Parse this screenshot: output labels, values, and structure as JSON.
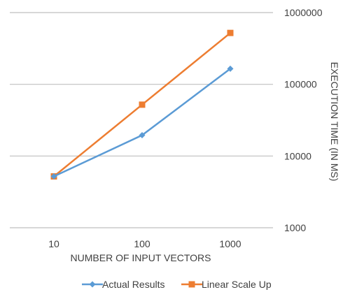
{
  "chart_data": {
    "type": "line",
    "x_scale": "log",
    "y_scale": "log",
    "x_categories": [
      "10",
      "100",
      "1000"
    ],
    "x": [
      10,
      100,
      1000
    ],
    "y_ticks": [
      "1000",
      "10000",
      "100000",
      "1000000"
    ],
    "ylim": [
      1000,
      1000000
    ],
    "xlabel": "NUMBER OF INPUT VECTORS",
    "ylabel": "EXECUTION TIME (IN MS)",
    "y_axis_position": "right",
    "grid": "horizontal",
    "legend_position": "bottom",
    "series": [
      {
        "name": "Actual Results",
        "color": "#5B9BD5",
        "marker": "diamond",
        "values": [
          5200,
          19500,
          165000
        ]
      },
      {
        "name": "Linear Scale Up",
        "color": "#ED7D31",
        "marker": "square",
        "values": [
          5200,
          52000,
          520000
        ]
      }
    ]
  }
}
